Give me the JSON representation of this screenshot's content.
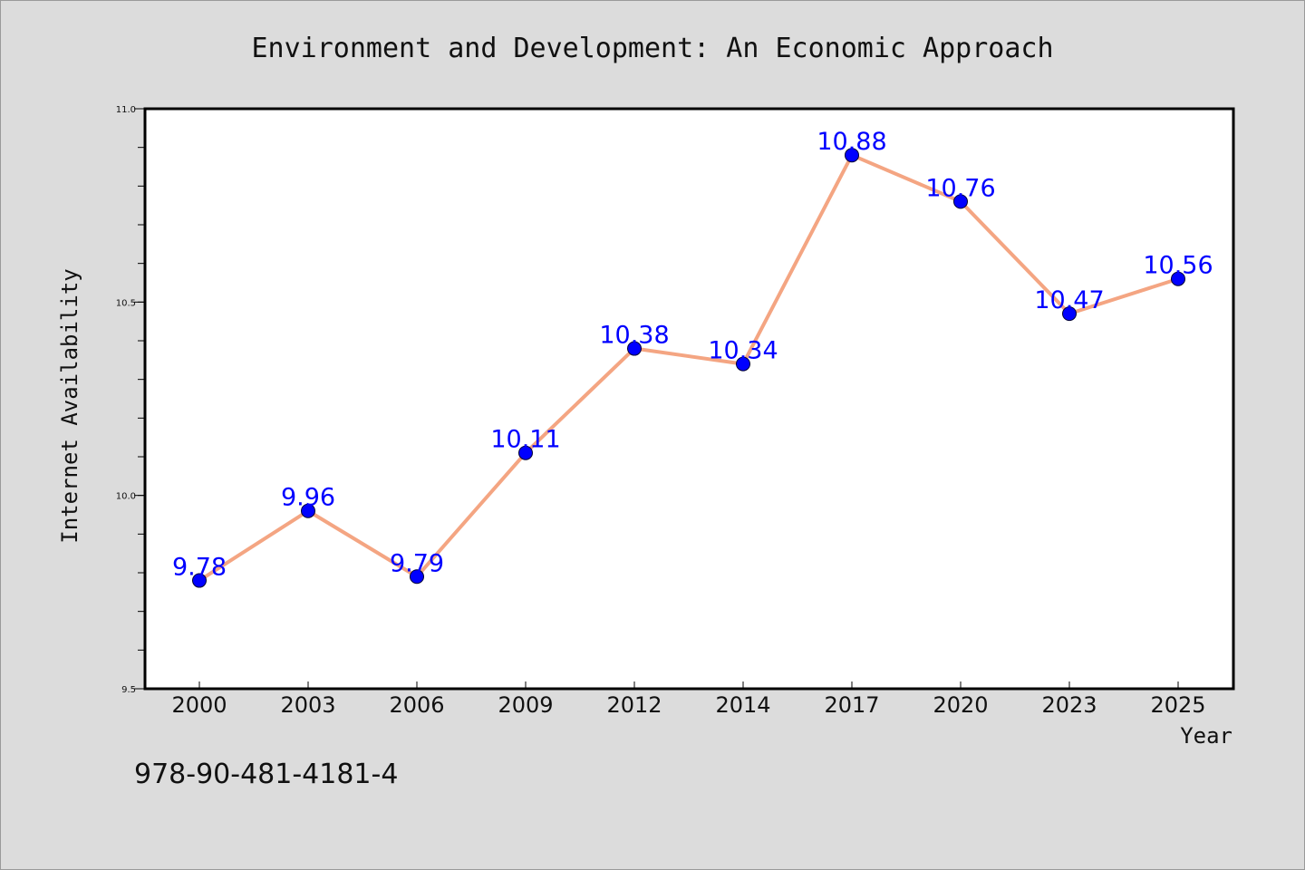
{
  "chart_data": {
    "type": "line",
    "title": "Environment and Development: An Economic Approach",
    "xlabel": "Year",
    "ylabel": "Internet Availability",
    "categories": [
      "2000",
      "2003",
      "2006",
      "2009",
      "2012",
      "2014",
      "2017",
      "2020",
      "2023",
      "2025"
    ],
    "values": [
      9.78,
      9.96,
      9.79,
      10.11,
      10.38,
      10.34,
      10.88,
      10.76,
      10.47,
      10.56
    ],
    "value_labels": [
      "9.78",
      "9.96",
      "9.79",
      "10.11",
      "10.38",
      "10.34",
      "10.88",
      "10.76",
      "10.47",
      "10.56"
    ],
    "ylim": [
      9.5,
      11.0
    ],
    "yticks": [
      9.5,
      10.0,
      10.5,
      11.0
    ],
    "ytick_labels": [
      "9.5",
      "10.0",
      "10.5",
      "11.0"
    ],
    "grid": false,
    "legend": "none",
    "colors": {
      "line": "#f4a582",
      "marker": "#0000ff",
      "data_label": "#0000ff",
      "plot_background": "#ffffff",
      "figure_background": "#dcdcdc"
    }
  },
  "annotation": {
    "isbn": "978-90-481-4181-4"
  }
}
